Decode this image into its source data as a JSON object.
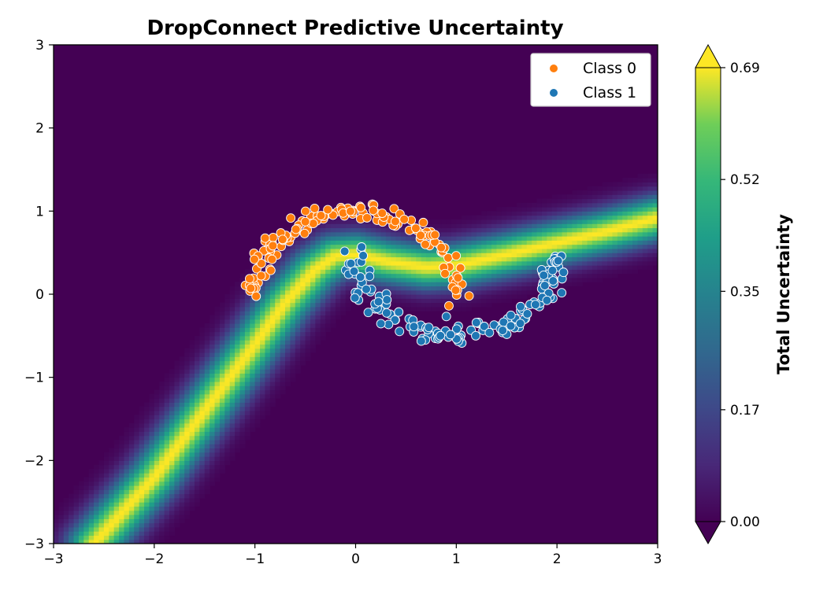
{
  "chart_data": {
    "type": "heatmap",
    "title": "DropConnect Predictive Uncertainty",
    "xlim": [
      -3,
      3
    ],
    "ylim": [
      -3,
      3
    ],
    "x_ticks": [
      -3,
      -2,
      -1,
      0,
      1,
      2,
      3
    ],
    "y_ticks": [
      -3,
      -2,
      -1,
      0,
      1,
      2,
      3
    ],
    "x_tick_labels": [
      "−3",
      "−2",
      "−1",
      "0",
      "1",
      "2",
      "3"
    ],
    "y_tick_labels": [
      "−3",
      "−2",
      "−1",
      "0",
      "1",
      "2",
      "3"
    ],
    "colormap": "viridis",
    "colorbar": {
      "label": "Total Uncertainty",
      "range": [
        0.0,
        0.69
      ],
      "ticks": [
        0.0,
        0.17,
        0.35,
        0.52,
        0.69
      ],
      "tick_labels": [
        "0.00",
        "0.17",
        "0.35",
        "0.52",
        "0.69"
      ],
      "extend": "both"
    },
    "decision_boundary": [
      [
        -2.6,
        -3.0
      ],
      [
        -2.0,
        -2.2
      ],
      [
        -1.5,
        -1.4
      ],
      [
        -1.0,
        -0.6
      ],
      [
        -0.7,
        -0.1
      ],
      [
        -0.4,
        0.3
      ],
      [
        -0.2,
        0.46
      ],
      [
        0.0,
        0.48
      ],
      [
        0.3,
        0.4
      ],
      [
        0.7,
        0.33
      ],
      [
        1.0,
        0.35
      ],
      [
        1.5,
        0.48
      ],
      [
        2.0,
        0.62
      ],
      [
        2.5,
        0.76
      ],
      [
        3.0,
        0.92
      ]
    ],
    "uncertainty_band_width": 0.18,
    "legend": {
      "position": "upper right",
      "entries": [
        "Class 0",
        "Class 1"
      ]
    },
    "series": [
      {
        "name": "Class 0",
        "color": "#ff7f0e",
        "shape": "moon-upper",
        "center": [
          0,
          0
        ],
        "radius": 1.0,
        "angle_range_deg": [
          0,
          180
        ],
        "n_points": 150,
        "noise": 0.06
      },
      {
        "name": "Class 1",
        "color": "#1f77b4",
        "shape": "moon-lower",
        "center": [
          1,
          0.5
        ],
        "radius": 1.0,
        "angle_range_deg": [
          180,
          360
        ],
        "n_points": 150,
        "noise": 0.06
      }
    ],
    "grid": false
  }
}
